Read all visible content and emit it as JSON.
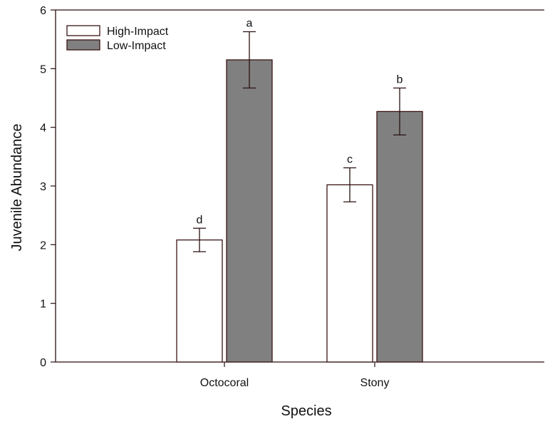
{
  "chart_data": {
    "type": "bar",
    "categories": [
      "Octocoral",
      "Stony"
    ],
    "series": [
      {
        "name": "High-Impact",
        "color": "#ffffff",
        "values": [
          2.08,
          3.02
        ],
        "errors": [
          0.2,
          0.29
        ],
        "labels": [
          "d",
          "c"
        ]
      },
      {
        "name": "Low-Impact",
        "color": "#808080",
        "values": [
          5.15,
          4.27
        ],
        "errors": [
          0.48,
          0.4
        ],
        "labels": [
          "a",
          "b"
        ]
      }
    ],
    "xlabel": "Species",
    "ylabel": "Juvenile Abundance",
    "ylim": [
      0,
      6
    ],
    "yticks": [
      "0",
      "1",
      "2",
      "3",
      "4",
      "5",
      "6"
    ],
    "grid": false,
    "legend_position": "top-left",
    "bar_edge_color": "#3a1414",
    "axis_color": "#2a0f0f"
  }
}
